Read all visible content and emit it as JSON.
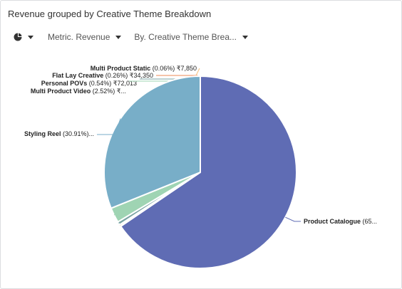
{
  "header": {
    "title": "Revenue grouped by Creative Theme Breakdown"
  },
  "toolbar": {
    "chart_type_icon": "pie-chart-icon",
    "metric_label": "Metric. Revenue",
    "group_by_label": "By. Creative Theme Brea..."
  },
  "chart_data": {
    "type": "pie",
    "title": "Revenue grouped by Creative Theme Breakdown",
    "slices": [
      {
        "name": "Product Catalogue",
        "label_rest": " (65...",
        "percent": 65.08,
        "color": "#5f6cb4"
      },
      {
        "name": "Multi Product Static",
        "label_rest": " (0.06%) ₹7,850",
        "percent": 0.06,
        "value": 7850,
        "color": "#f5c07a"
      },
      {
        "name": "Flat Lay Creative",
        "label_rest": " (0.26%) ₹34,350",
        "percent": 0.26,
        "value": 34350,
        "color": "#ee8a55"
      },
      {
        "name": "Personal POVs",
        "label_rest": " (0.54%) ₹72,013",
        "percent": 0.54,
        "value": 72013,
        "color": "#79a3a3"
      },
      {
        "name": "Multi Product Video",
        "label_rest": " (2.52%) ₹...",
        "percent": 2.52,
        "color": "#9fd4b3"
      },
      {
        "name": "Styling Reel",
        "label_rest": " (30.91%)...",
        "percent": 30.91,
        "color": "#78aec8"
      }
    ],
    "legend": "none"
  }
}
